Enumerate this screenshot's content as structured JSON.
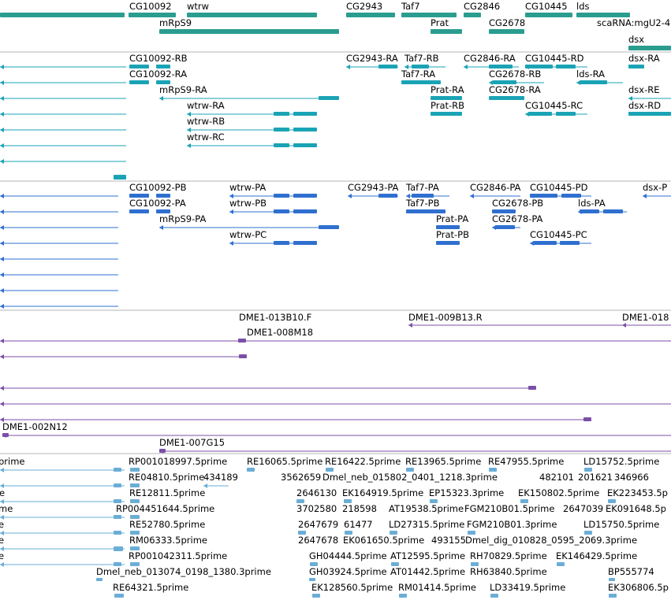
{
  "colors": {
    "gene": "#2a9d8f",
    "transcript_a": "#1aa3b5",
    "transcript_b": "#2f6fd0",
    "bac": "#7b4fa8",
    "est": "#6aaed6",
    "divider": "#b4b4b4"
  },
  "tracks": [
    {
      "name": "gene-track",
      "color": "#2a9d8f",
      "labels": [
        "CG10092",
        "wtrw",
        "CG2943",
        "Taf7",
        "CG2846",
        "CG10445",
        "lds",
        "mRpS9",
        "Prat",
        "CG2678",
        "scaRNA:mgU2-4",
        "dsx"
      ]
    },
    {
      "name": "transcript-track-a",
      "color": "#1aa3b5",
      "labels": [
        "CG10092-RB",
        "CG2943-RA",
        "Taf7-RB",
        "CG2846-RA",
        "CG10445-RD",
        "dsx-RA",
        "CG10092-RA",
        "Taf7-RA",
        "CG2678-RB",
        "lds-RA",
        "mRpS9-RA",
        "Prat-RA",
        "CG2678-RA",
        "dsx-RE",
        "wtrw-RA",
        "Prat-RB",
        "CG10445-RC",
        "dsx-RD",
        "wtrw-RB",
        "wtrw-RC"
      ]
    },
    {
      "name": "transcript-track-b",
      "color": "#2f6fd0",
      "labels": [
        "CG10092-PB",
        "wtrw-PA",
        "CG2943-PA",
        "Taf7-PA",
        "CG2846-PA",
        "CG10445-PD",
        "dsx-P",
        "CG10092-PA",
        "wtrw-PB",
        "Taf7-PB",
        "CG2678-PB",
        "lds-PA",
        "mRpS9-PA",
        "Prat-PA",
        "CG2678-PA",
        "wtrw-PC",
        "Prat-PB",
        "CG10445-PC"
      ]
    },
    {
      "name": "bac-track",
      "color": "#7b4fa8",
      "labels": [
        "DME1-013B10.F",
        "DME1-009B13.R",
        "DME1-018",
        "DME1-008M18",
        "DME1-002N12",
        "DME1-007G15"
      ]
    },
    {
      "name": "est-track",
      "color": "#6aaed6",
      "labels": [
        "prime",
        "RP001018997.5prime",
        "RE16065.5prime",
        "RE16422.5prime",
        "RE13965.5prime",
        "RE47955.5prime",
        "LD15752.5prime",
        "RE04810.5prime",
        "434189",
        "3562659",
        "Dmel_neb_015802_0401_1218.3prime",
        "482101",
        "201621",
        "346966",
        "e",
        "RE12811.5prime",
        "2646130",
        "EK164919.5prime",
        "EP15323.3prime",
        "EK150802.5prime",
        "EK223453.5p",
        "me",
        "RP004451644.5prime",
        "3702580",
        "218598",
        "AT19538.5prime",
        "FGM210B01.5prime",
        "2647039",
        "EK091648.5p",
        "e",
        "RE52780.5prime",
        "2647679",
        "61477",
        "LD27315.5prime",
        "FGM210B01.3prime",
        "LD15750.5prime",
        "e",
        "RM06333.5prime",
        "2647678",
        "EK061650.5prime",
        "493155",
        "Dmel_dig_010828_0595_2069.3prime",
        "e",
        "RP001042311.5prime",
        "GH04444.5prime",
        "AT12595.5prime",
        "RH70829.5prime",
        "EK146429.5prime",
        "Dmel_neb_013074_0198_1380.3prime",
        "GH03924.5prime",
        "AT01442.5prime",
        "RH63840.5prime",
        "BP555774",
        "RE64321.5prime",
        "EK128560.5prime",
        "RM01414.5prime",
        "LD33419.5prime",
        "EK306806.5p"
      ]
    }
  ]
}
